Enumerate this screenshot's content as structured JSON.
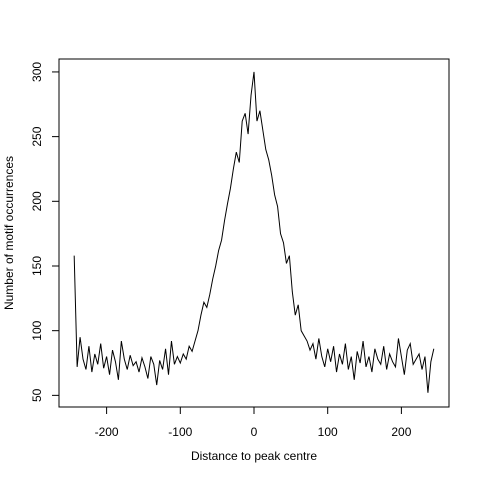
{
  "chart_data": {
    "type": "line",
    "xlabel": "Distance to peak centre",
    "ylabel": "Number of motif occurrences",
    "xlim": [
      -264.6,
      264.6
    ],
    "ylim": [
      41,
      310
    ],
    "xticks": [
      -200,
      -100,
      0,
      100,
      200
    ],
    "yticks": [
      50,
      100,
      150,
      200,
      250,
      300
    ],
    "color": "#000000",
    "x": [
      -244,
      -240,
      -236,
      -232,
      -228,
      -224,
      -220,
      -216,
      -212,
      -208,
      -204,
      -200,
      -196,
      -192,
      -188,
      -184,
      -180,
      -176,
      -172,
      -168,
      -164,
      -160,
      -156,
      -152,
      -148,
      -144,
      -140,
      -136,
      -132,
      -128,
      -124,
      -120,
      -116,
      -112,
      -108,
      -104,
      -100,
      -96,
      -92,
      -88,
      -84,
      -80,
      -76,
      -72,
      -68,
      -64,
      -60,
      -56,
      -52,
      -48,
      -44,
      -40,
      -36,
      -32,
      -28,
      -24,
      -20,
      -16,
      -12,
      -8,
      -4,
      0,
      4,
      8,
      12,
      16,
      20,
      24,
      28,
      32,
      36,
      40,
      44,
      48,
      52,
      56,
      60,
      64,
      68,
      72,
      76,
      80,
      84,
      88,
      92,
      96,
      100,
      104,
      108,
      112,
      116,
      120,
      124,
      128,
      132,
      136,
      140,
      144,
      148,
      152,
      156,
      160,
      164,
      168,
      172,
      176,
      180,
      184,
      188,
      192,
      196,
      200,
      204,
      208,
      212,
      216,
      220,
      224,
      228,
      232,
      236,
      240,
      244
    ],
    "values": [
      158,
      72,
      95,
      78,
      70,
      88,
      68,
      82,
      74,
      90,
      71,
      80,
      66,
      85,
      76,
      62,
      92,
      78,
      70,
      81,
      73,
      76,
      68,
      79,
      72,
      63,
      80,
      74,
      58,
      77,
      70,
      86,
      66,
      92,
      74,
      80,
      75,
      82,
      78,
      88,
      84,
      92,
      100,
      112,
      122,
      118,
      128,
      140,
      150,
      162,
      170,
      185,
      198,
      210,
      225,
      238,
      230,
      262,
      268,
      252,
      282,
      300,
      262,
      270,
      255,
      240,
      232,
      220,
      205,
      196,
      175,
      168,
      152,
      158,
      130,
      112,
      120,
      100,
      96,
      92,
      85,
      90,
      78,
      94,
      80,
      72,
      86,
      76,
      88,
      68,
      82,
      74,
      90,
      70,
      80,
      62,
      84,
      75,
      92,
      72,
      80,
      68,
      86,
      78,
      74,
      88,
      70,
      82,
      76,
      72,
      94,
      80,
      66,
      85,
      90,
      74,
      78,
      82,
      70,
      80,
      52,
      76,
      86
    ]
  }
}
